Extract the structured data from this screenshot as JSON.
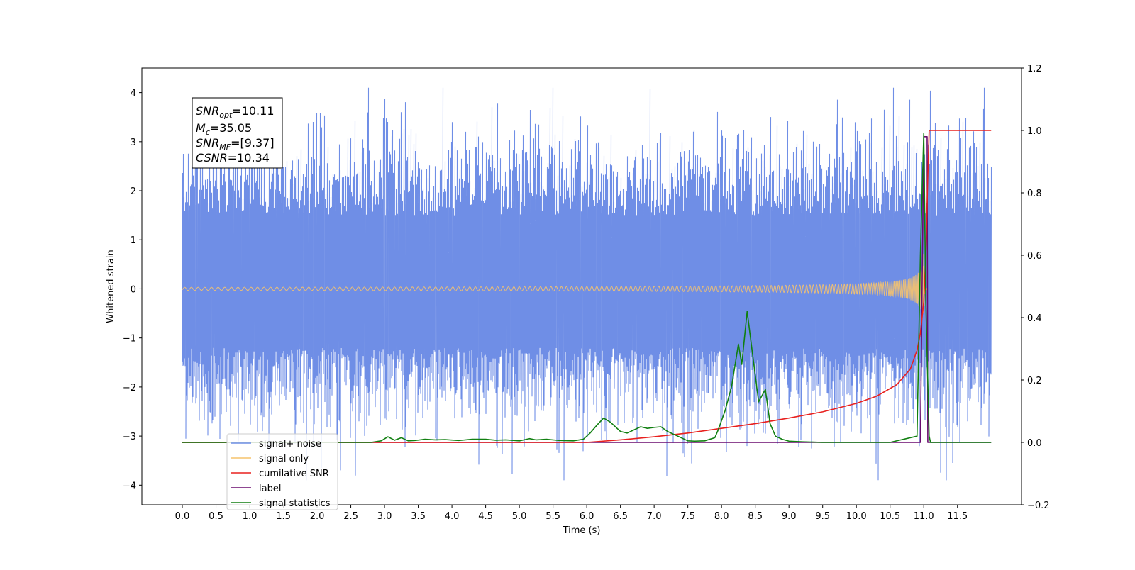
{
  "chart_data": {
    "type": "line",
    "xlabel": "Time (s)",
    "ylabel": "Whitened strain",
    "xlim": [
      -0.6,
      12.45
    ],
    "ylim": [
      -4.4,
      4.5
    ],
    "y2lim": [
      -0.2,
      1.2
    ],
    "x_ticks": [
      "0.0",
      "0.5",
      "1.0",
      "1.5",
      "2.0",
      "2.5",
      "3.0",
      "3.5",
      "4.0",
      "4.5",
      "5.0",
      "5.5",
      "6.0",
      "6.5",
      "7.0",
      "7.5",
      "8.0",
      "8.5",
      "9.0",
      "9.5",
      "10.0",
      "10.5",
      "11.0",
      "11.5"
    ],
    "y_ticks": [
      "−4",
      "−3",
      "−2",
      "−1",
      "0",
      "1",
      "2",
      "3",
      "4"
    ],
    "y2_ticks": [
      "−0.2",
      "0.0",
      "0.2",
      "0.4",
      "0.6",
      "0.8",
      "1.0",
      "1.2"
    ],
    "legend_position": "bottom-left",
    "annotation": {
      "snr_opt": {
        "base": "SNR",
        "sub": "opt",
        "value": "=10.11"
      },
      "mc": {
        "base": "M",
        "sub": "c",
        "value": "=35.05"
      },
      "snr_mf": {
        "base": "SNR",
        "sub": "MF",
        "value": "=[9.37]"
      },
      "csnr": {
        "base": "CSNR",
        "value": "=10.34"
      }
    },
    "series": [
      {
        "name": "signal+ noise",
        "color": "#6f8ee6",
        "axis": "left",
        "duration": 12.0,
        "envelope": {
          "typical_range": [
            -2.0,
            2.5
          ],
          "peak_range": [
            -3.9,
            4.1
          ]
        }
      },
      {
        "name": "signal only",
        "color": "#f6c36d",
        "axis": "left",
        "chirp": {
          "t_start": 0.0,
          "t_merger": 11.0,
          "t_end": 12.0,
          "peak_amplitude": 0.75
        }
      },
      {
        "name": "cumilative SNR",
        "color": "#e8201e",
        "axis": "right",
        "x": [
          0,
          6.0,
          6.5,
          7.0,
          7.5,
          8.0,
          8.5,
          9.0,
          9.5,
          10.0,
          10.3,
          10.6,
          10.8,
          10.9,
          10.95,
          11.0,
          11.03,
          11.06,
          11.08,
          12.0
        ],
        "y": [
          0,
          0,
          0.008,
          0.018,
          0.03,
          0.045,
          0.06,
          0.078,
          0.098,
          0.125,
          0.148,
          0.185,
          0.235,
          0.295,
          0.35,
          0.45,
          0.6,
          0.85,
          1.0,
          1.0
        ]
      },
      {
        "name": "label",
        "color": "#6a0a6e",
        "axis": "right",
        "x": [
          0,
          10.95,
          11.0,
          11.05,
          11.06,
          12.0
        ],
        "y": [
          0,
          0,
          0.98,
          0.98,
          0,
          0
        ]
      },
      {
        "name": "signal statistics",
        "color": "#107f10",
        "axis": "right",
        "x": [
          0,
          2.8,
          2.95,
          3.05,
          3.15,
          3.25,
          3.35,
          3.45,
          3.6,
          3.75,
          3.9,
          4.1,
          4.3,
          4.5,
          4.65,
          4.8,
          5.0,
          5.15,
          5.25,
          5.4,
          5.6,
          5.8,
          5.95,
          6.05,
          6.15,
          6.25,
          6.35,
          6.5,
          6.6,
          6.7,
          6.8,
          6.9,
          7.0,
          7.1,
          7.2,
          7.35,
          7.5,
          7.6,
          7.75,
          7.9,
          7.95,
          8.05,
          8.15,
          8.25,
          8.3,
          8.38,
          8.45,
          8.55,
          8.65,
          8.72,
          8.8,
          8.9,
          9.0,
          9.2,
          9.5,
          10.0,
          10.5,
          10.9,
          10.95,
          11.0,
          11.03,
          11.08,
          11.1,
          12.0
        ],
        "y": [
          0,
          0,
          0.005,
          0.018,
          0.007,
          0.015,
          0.005,
          0.006,
          0.01,
          0.008,
          0.009,
          0.006,
          0.01,
          0.01,
          0.007,
          0.008,
          0.005,
          0.012,
          0.008,
          0.01,
          0.006,
          0.005,
          0.01,
          0.03,
          0.055,
          0.078,
          0.065,
          0.035,
          0.03,
          0.04,
          0.05,
          0.045,
          0.048,
          0.05,
          0.035,
          0.02,
          0.005,
          0.004,
          0.005,
          0.015,
          0.04,
          0.1,
          0.18,
          0.315,
          0.25,
          0.42,
          0.3,
          0.13,
          0.17,
          0.06,
          0.02,
          0.01,
          0.004,
          0.002,
          0,
          0,
          0,
          0.02,
          0.6,
          0.99,
          0.45,
          0.02,
          0,
          0
        ]
      }
    ]
  }
}
